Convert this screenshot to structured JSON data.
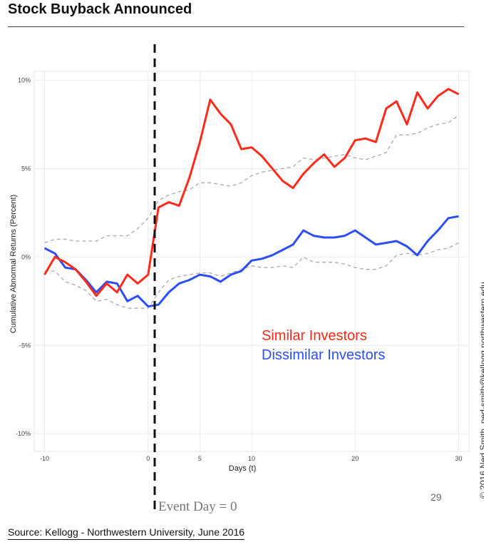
{
  "slide": {
    "title": "Stock Buyback Announced",
    "source": "Source: Kellogg - Northwestern University, June 2016",
    "page_number": "29",
    "copyright": "© 2016 Ned Smith, ned-smith@kellogg.northwestern.edu",
    "event_label": "Event Day = 0"
  },
  "chart_data": {
    "type": "line",
    "xlabel": "Days (t)",
    "ylabel": "Cumulative Abnormal Returns (Percent)",
    "xlim": [
      -11,
      31
    ],
    "ylim": [
      -11,
      10.5
    ],
    "xticks": [
      -10,
      0,
      5,
      10,
      20,
      30
    ],
    "xtick_labels": [
      "-10",
      "0",
      "5",
      "10",
      "20",
      "30"
    ],
    "yticks": [
      10,
      5,
      0,
      -5,
      -10
    ],
    "ytick_labels": [
      "10%",
      "5%",
      "0%",
      "-5%",
      "-10%"
    ],
    "grid": true,
    "legend_position": "inside-right",
    "event_day": 0,
    "x": [
      -10,
      -9,
      -8,
      -7,
      -6,
      -5,
      -4,
      -3,
      -2,
      -1,
      0,
      1,
      2,
      3,
      4,
      5,
      6,
      7,
      8,
      9,
      10,
      11,
      12,
      13,
      14,
      15,
      16,
      17,
      18,
      19,
      20,
      21,
      22,
      23,
      24,
      25,
      26,
      27,
      28,
      29,
      30
    ],
    "series": [
      {
        "name": "Similar Investors",
        "color": "#ff2a1a",
        "style": "solid",
        "values": [
          -1.0,
          0.0,
          -0.3,
          -0.7,
          -1.4,
          -2.2,
          -1.5,
          -2.0,
          -1.0,
          -1.5,
          -1.0,
          2.8,
          3.1,
          2.9,
          4.5,
          6.5,
          8.9,
          8.1,
          7.5,
          6.1,
          6.2,
          5.7,
          5.0,
          4.3,
          3.9,
          4.7,
          5.3,
          5.8,
          5.1,
          5.6,
          6.6,
          6.7,
          6.5,
          8.4,
          8.8,
          7.5,
          9.3,
          8.4,
          9.1,
          9.5,
          9.2
        ]
      },
      {
        "name": "Dissimilar Investors",
        "color": "#2b4ef5",
        "style": "solid",
        "values": [
          0.5,
          0.2,
          -0.6,
          -0.7,
          -1.3,
          -2.0,
          -1.4,
          -1.5,
          -2.5,
          -2.2,
          -2.8,
          -2.7,
          -2.0,
          -1.5,
          -1.3,
          -1.0,
          -1.1,
          -1.4,
          -1.0,
          -0.8,
          -0.2,
          -0.1,
          0.1,
          0.4,
          0.7,
          1.5,
          1.2,
          1.1,
          1.1,
          1.2,
          1.5,
          1.1,
          0.7,
          0.8,
          0.9,
          0.6,
          0.1,
          0.9,
          1.5,
          2.2,
          2.3
        ]
      },
      {
        "name": "",
        "color": "#aaaaaa",
        "style": "dashed",
        "values": [
          0.8,
          1.0,
          1.0,
          0.9,
          0.9,
          0.9,
          1.2,
          1.2,
          1.2,
          1.6,
          2.2,
          3.2,
          3.5,
          3.7,
          3.8,
          4.2,
          4.2,
          4.1,
          4.0,
          4.2,
          4.6,
          4.8,
          4.9,
          5.0,
          5.1,
          5.6,
          5.5,
          5.6,
          5.7,
          5.8,
          5.6,
          5.5,
          5.7,
          5.9,
          6.9,
          6.9,
          7.0,
          7.3,
          7.5,
          7.6,
          8.0
        ]
      },
      {
        "name": "",
        "color": "#aaaaaa",
        "style": "dashed",
        "values": [
          -0.8,
          -0.8,
          -1.4,
          -1.6,
          -1.9,
          -2.5,
          -2.4,
          -2.7,
          -2.9,
          -2.9,
          -2.9,
          -2.0,
          -1.3,
          -1.1,
          -1.0,
          -0.9,
          -0.9,
          -1.1,
          -0.9,
          -0.7,
          -0.5,
          -0.6,
          -0.6,
          -0.5,
          -0.6,
          0.0,
          -0.3,
          -0.3,
          -0.3,
          -0.4,
          -0.6,
          -0.7,
          -0.7,
          -0.5,
          0.1,
          0.2,
          0.1,
          0.2,
          0.4,
          0.5,
          0.8
        ]
      }
    ]
  }
}
